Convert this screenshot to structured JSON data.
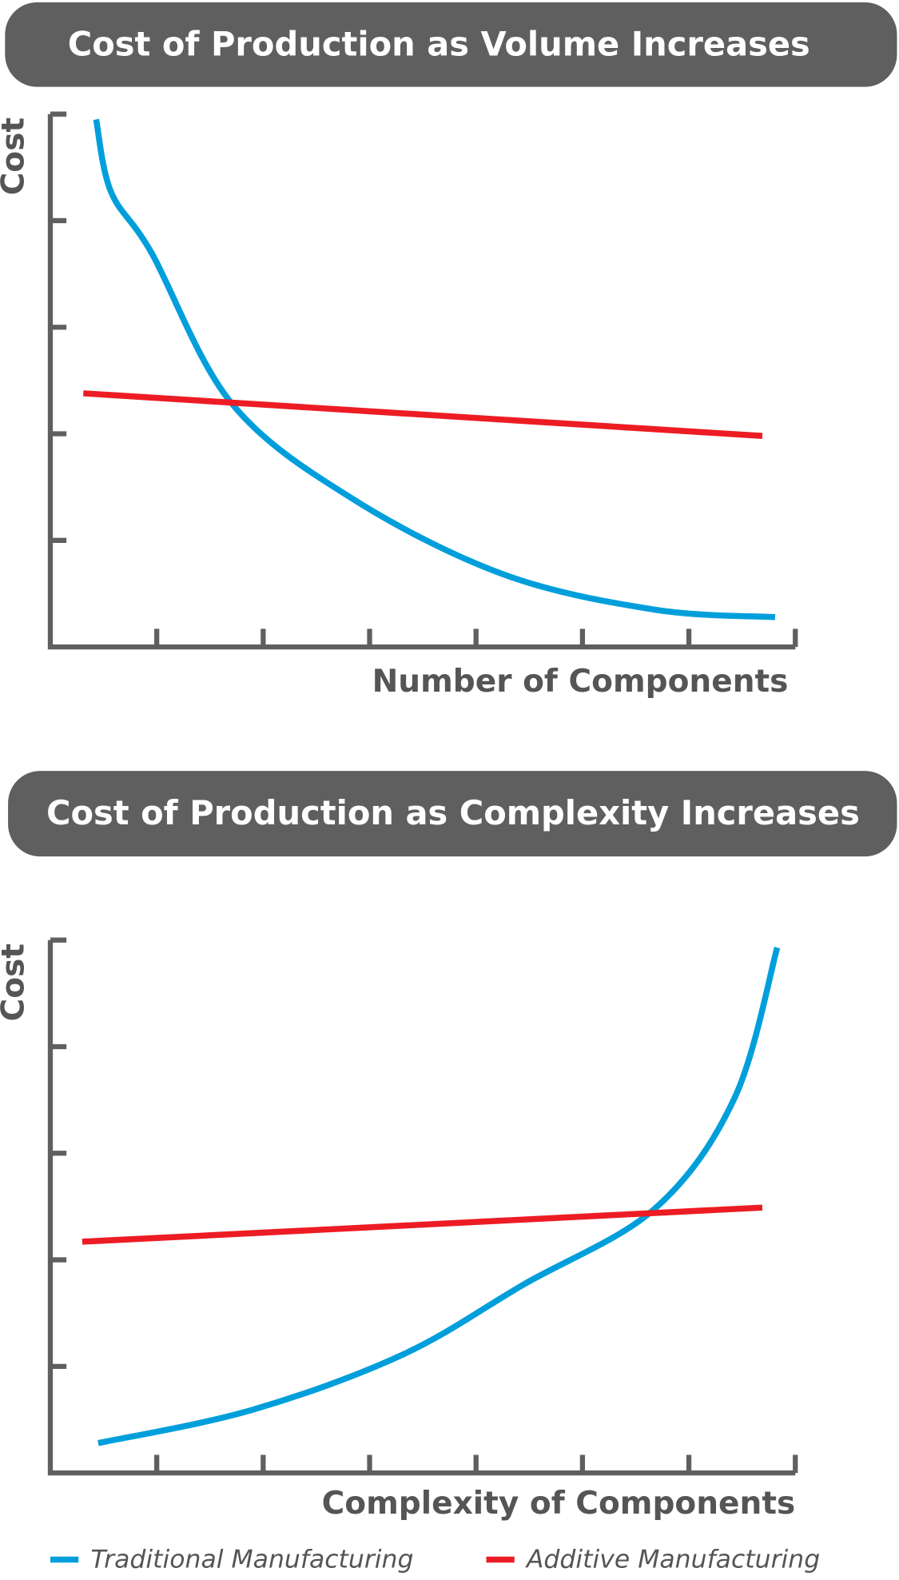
{
  "chart_data": [
    {
      "type": "line",
      "title": "Cost of Production as Volume Increases",
      "x_label": "Number of Components",
      "y_label": "Cost",
      "xlim": [
        0,
        7
      ],
      "ylim": [
        0,
        5
      ],
      "xticks": [
        1,
        2,
        3,
        4,
        5,
        6,
        7
      ],
      "yticks": [
        1,
        2,
        3,
        4,
        5
      ],
      "series": [
        {
          "color": "#009fdb",
          "x": [
            0.43,
            0.57,
            0.95,
            1.7,
            2.84,
            4.26,
            5.68,
            6.81
          ],
          "values": [
            4.95,
            4.27,
            3.7,
            2.29,
            1.39,
            0.68,
            0.35,
            0.28
          ]
        },
        {
          "color": "#ed1c24",
          "x": [
            0.31,
            6.69
          ],
          "values": [
            2.38,
            1.98
          ]
        }
      ]
    },
    {
      "type": "line",
      "title": "Cost of Production as Complexity Increases",
      "x_label": "Complexity of Components",
      "y_label": "Cost",
      "xlim": [
        0,
        7
      ],
      "ylim": [
        0,
        5
      ],
      "xticks": [
        1,
        2,
        3,
        4,
        5,
        6,
        7
      ],
      "yticks": [
        1,
        2,
        3,
        4,
        5
      ],
      "series": [
        {
          "name": "Traditional Manufacturing",
          "color": "#009fdb",
          "x": [
            0.45,
            1.89,
            3.31,
            4.45,
            5.68,
            6.43,
            6.83
          ],
          "values": [
            0.28,
            0.59,
            1.11,
            1.77,
            2.48,
            3.52,
            4.93
          ]
        },
        {
          "name": "Additive Manufacturing",
          "color": "#ed1c24",
          "x": [
            0.3,
            6.69
          ],
          "values": [
            2.17,
            2.49
          ]
        }
      ]
    }
  ]
}
